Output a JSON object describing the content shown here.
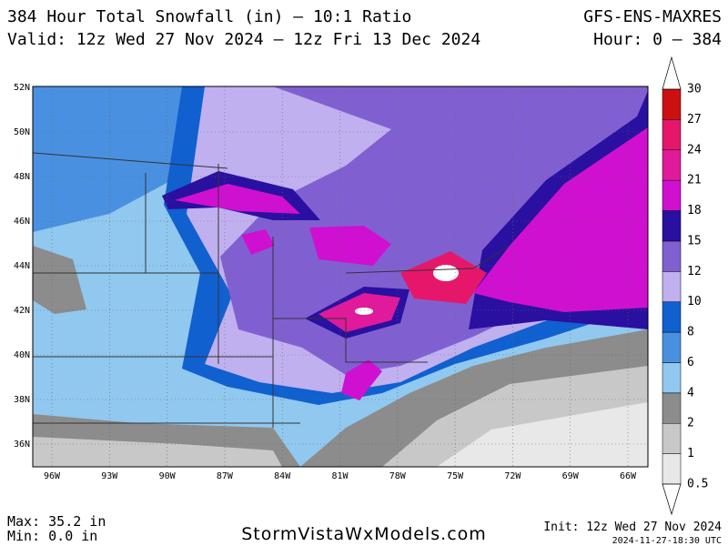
{
  "header": {
    "title": "384 Hour Total Snowfall (in) – 10:1 Ratio",
    "model": "GFS-ENS-MAXRES",
    "valid": "Valid: 12z Wed 27 Nov 2024 – 12z Fri 13 Dec 2024",
    "hours": "Hour: 0 – 384"
  },
  "map": {
    "lat_labels": [
      "52N",
      "50N",
      "48N",
      "46N",
      "44N",
      "42N",
      "40N",
      "38N",
      "36N"
    ],
    "lon_labels": [
      "96W",
      "93W",
      "90W",
      "87W",
      "84W",
      "81W",
      "78W",
      "75W",
      "72W",
      "69W",
      "66W"
    ]
  },
  "legend": {
    "levels": [
      0.5,
      1,
      2,
      4,
      6,
      8,
      10,
      12,
      15,
      18,
      21,
      24,
      27,
      30
    ],
    "colors": [
      "#e8e8e8",
      "#c8c8c8",
      "#8c8c8c",
      "#90c8f0",
      "#4a90e0",
      "#1060d0",
      "#c0b0f0",
      "#8060d0",
      "#2a10a0",
      "#d010d0",
      "#e01a9a",
      "#e6176a",
      "#cc1010"
    ]
  },
  "footer": {
    "max": "Max: 35.2 in",
    "min": "Min: 0.0 in",
    "site": "StormVistaWxModels.com",
    "init": "Init: 12z Wed 27 Nov 2024",
    "stamp": "2024-11-27-18:30 UTC"
  }
}
